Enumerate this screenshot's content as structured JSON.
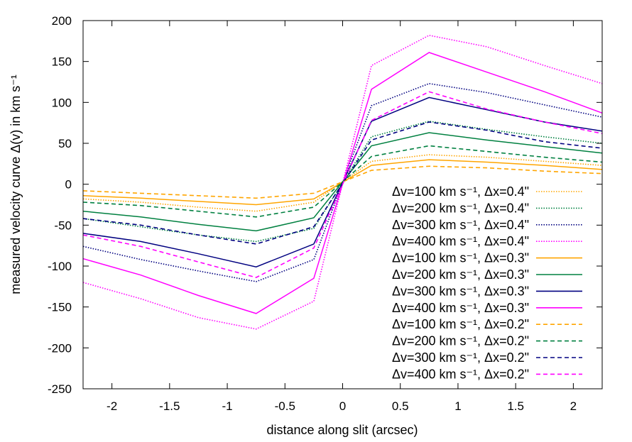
{
  "chart_data": {
    "type": "line",
    "title": "",
    "xlabel": "distance along slit (arcsec)",
    "ylabel": "measured velocity curve Δ(v) in km s⁻¹",
    "xlim": [
      -2.25,
      2.25
    ],
    "ylim": [
      -250,
      200
    ],
    "xticks": [
      -2,
      -1.5,
      -1,
      -0.5,
      0,
      0.5,
      1,
      1.5,
      2
    ],
    "xtick_labels": [
      "-2",
      "-1.5",
      "-1",
      "-0.5",
      "0",
      "0.5",
      "1",
      "1.5",
      "2"
    ],
    "yticks": [
      -250,
      -200,
      -150,
      -100,
      -50,
      0,
      50,
      100,
      150,
      200
    ],
    "ytick_labels": [
      "-250",
      "-200",
      "-150",
      "-100",
      "-50",
      "0",
      "50",
      "100",
      "150",
      "200"
    ],
    "grid": false,
    "legend_position": "center-right",
    "x": [
      -2.25,
      -1.75,
      -1.25,
      -0.75,
      -0.25,
      0.25,
      0.75,
      1.25,
      1.75,
      2.25
    ],
    "series": [
      {
        "name": "Δv=100 km s⁻¹, Δx=0.4\"",
        "color": "#ffa500",
        "dash": "dotted",
        "values": [
          -18,
          -22,
          -28,
          -33,
          -22,
          28,
          36,
          33,
          28,
          23
        ]
      },
      {
        "name": "Δv=200 km s⁻¹, Δx=0.4\"",
        "color": "#008040",
        "dash": "dotted",
        "values": [
          -42,
          -52,
          -62,
          -70,
          -54,
          58,
          77,
          67,
          58,
          50
        ]
      },
      {
        "name": "Δv=300 km s⁻¹, Δx=0.4\"",
        "color": "#000080",
        "dash": "dotted",
        "values": [
          -76,
          -92,
          -106,
          -119,
          -92,
          96,
          123,
          112,
          97,
          82
        ]
      },
      {
        "name": "Δv=400 km s⁻¹, Δx=0.4\"",
        "color": "#ff00ff",
        "dash": "dotted",
        "values": [
          -120,
          -140,
          -163,
          -177,
          -143,
          145,
          182,
          168,
          145,
          123
        ]
      },
      {
        "name": "Δv=100 km s⁻¹, Δx=0.3\"",
        "color": "#ffa500",
        "dash": "solid",
        "values": [
          -14,
          -17,
          -21,
          -25,
          -18,
          23,
          30,
          27,
          23,
          18
        ]
      },
      {
        "name": "Δv=200 km s⁻¹, Δx=0.3\"",
        "color": "#008040",
        "dash": "solid",
        "values": [
          -33,
          -40,
          -49,
          -57,
          -41,
          47,
          63,
          54,
          46,
          38
        ]
      },
      {
        "name": "Δv=300 km s⁻¹, Δx=0.3\"",
        "color": "#000080",
        "dash": "solid",
        "values": [
          -60,
          -70,
          -85,
          -101,
          -73,
          77,
          106,
          91,
          76,
          65
        ]
      },
      {
        "name": "Δv=400 km s⁻¹, Δx=0.3\"",
        "color": "#ff00ff",
        "dash": "solid",
        "values": [
          -91,
          -111,
          -136,
          -158,
          -115,
          116,
          161,
          137,
          113,
          87
        ]
      },
      {
        "name": "Δv=100 km s⁻¹, Δx=0.2\"",
        "color": "#ffa500",
        "dash": "dashed",
        "values": [
          -8,
          -11,
          -14,
          -17,
          -11,
          17,
          22,
          20,
          16,
          13
        ]
      },
      {
        "name": "Δv=200 km s⁻¹, Δx=0.2\"",
        "color": "#008040",
        "dash": "dashed",
        "values": [
          -22,
          -26,
          -33,
          -40,
          -28,
          34,
          47,
          40,
          33,
          27
        ]
      },
      {
        "name": "Δv=300 km s⁻¹, Δx=0.2\"",
        "color": "#000080",
        "dash": "dashed",
        "values": [
          -42,
          -50,
          -62,
          -73,
          -52,
          54,
          76,
          66,
          52,
          44
        ]
      },
      {
        "name": "Δv=400 km s⁻¹, Δx=0.2\"",
        "color": "#ff00ff",
        "dash": "dashed",
        "values": [
          -62,
          -76,
          -95,
          -114,
          -78,
          78,
          113,
          92,
          76,
          62
        ]
      }
    ]
  }
}
